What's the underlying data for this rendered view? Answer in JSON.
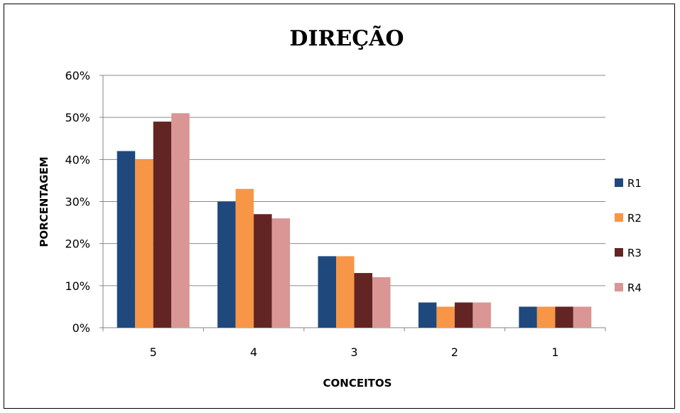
{
  "chart_data": {
    "type": "bar",
    "title": "DIREÇÃO",
    "xlabel": "CONCEITOS",
    "ylabel": "PORCENTAGEM",
    "categories": [
      "5",
      "4",
      "3",
      "2",
      "1"
    ],
    "ylim": [
      0,
      60
    ],
    "yticks": [
      "0%",
      "10%",
      "20%",
      "30%",
      "40%",
      "50%",
      "60%"
    ],
    "grid": true,
    "legend_position": "right",
    "series": [
      {
        "name": "R1",
        "color": "#1F497D",
        "values": [
          42,
          30,
          17,
          6,
          5
        ]
      },
      {
        "name": "R2",
        "color": "#F79646",
        "values": [
          40,
          33,
          17,
          5,
          5
        ]
      },
      {
        "name": "R3",
        "color": "#632523",
        "values": [
          49,
          27,
          13,
          6,
          5
        ]
      },
      {
        "name": "R4",
        "color": "#D99694",
        "values": [
          51,
          26,
          12,
          6,
          5
        ]
      }
    ]
  }
}
